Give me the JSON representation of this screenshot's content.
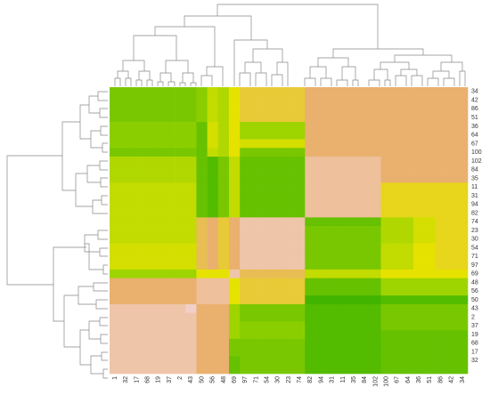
{
  "chart_data": {
    "type": "heatmap",
    "x": [
      "1",
      "32",
      "17",
      "68",
      "19",
      "37",
      "2",
      "43",
      "50",
      "56",
      "48",
      "69",
      "97",
      "71",
      "54",
      "30",
      "23",
      "74",
      "82",
      "94",
      "31",
      "11",
      "35",
      "84",
      "102",
      "100",
      "67",
      "64",
      "36",
      "51",
      "86",
      "42",
      "34"
    ],
    "y": [
      "34",
      "42",
      "86",
      "51",
      "36",
      "64",
      "67",
      "100",
      "102",
      "84",
      "35",
      "11",
      "31",
      "94",
      "82",
      "74",
      "23",
      "30",
      "54",
      "71",
      "97",
      "69",
      "48",
      "56",
      "50",
      "43",
      "2",
      "37",
      "19",
      "68",
      "17",
      "32",
      null
    ],
    "colorscale": [
      [
        0,
        "#f2cfc8"
      ],
      [
        0.3,
        "#e9b06e"
      ],
      [
        0.5,
        "#e6e200"
      ],
      [
        0.7,
        "#9ed400"
      ],
      [
        1,
        "#2eae00"
      ]
    ],
    "values": [
      [
        0.8,
        0.8,
        0.8,
        0.8,
        0.8,
        0.8,
        0.8,
        0.8,
        0.75,
        0.6,
        0.65,
        0.5,
        0.4,
        0.4,
        0.4,
        0.4,
        0.4,
        0.4,
        0.3,
        0.3,
        0.3,
        0.3,
        0.3,
        0.3,
        0.3,
        0.3,
        0.3,
        0.3,
        0.3,
        0.3,
        0.3,
        0.3,
        0.3
      ],
      [
        0.8,
        0.8,
        0.8,
        0.8,
        0.8,
        0.8,
        0.8,
        0.8,
        0.75,
        0.6,
        0.65,
        0.5,
        0.4,
        0.4,
        0.4,
        0.4,
        0.4,
        0.4,
        0.3,
        0.3,
        0.3,
        0.3,
        0.3,
        0.3,
        0.3,
        0.3,
        0.3,
        0.3,
        0.3,
        0.3,
        0.3,
        0.3,
        0.3
      ],
      [
        0.8,
        0.8,
        0.8,
        0.8,
        0.8,
        0.8,
        0.8,
        0.8,
        0.75,
        0.6,
        0.65,
        0.5,
        0.4,
        0.4,
        0.4,
        0.4,
        0.4,
        0.4,
        0.3,
        0.3,
        0.3,
        0.3,
        0.3,
        0.3,
        0.3,
        0.3,
        0.3,
        0.3,
        0.3,
        0.3,
        0.3,
        0.3,
        0.3
      ],
      [
        0.8,
        0.8,
        0.8,
        0.8,
        0.8,
        0.8,
        0.8,
        0.8,
        0.75,
        0.6,
        0.65,
        0.5,
        0.4,
        0.4,
        0.4,
        0.4,
        0.4,
        0.4,
        0.3,
        0.3,
        0.3,
        0.3,
        0.3,
        0.3,
        0.3,
        0.3,
        0.3,
        0.3,
        0.3,
        0.3,
        0.3,
        0.3,
        0.3
      ],
      [
        0.75,
        0.75,
        0.75,
        0.75,
        0.75,
        0.75,
        0.75,
        0.75,
        0.85,
        0.55,
        0.65,
        0.5,
        0.7,
        0.7,
        0.7,
        0.7,
        0.7,
        0.7,
        0.3,
        0.3,
        0.3,
        0.3,
        0.3,
        0.3,
        0.3,
        0.3,
        0.3,
        0.3,
        0.3,
        0.3,
        0.3,
        0.3,
        0.3
      ],
      [
        0.75,
        0.75,
        0.75,
        0.75,
        0.75,
        0.75,
        0.75,
        0.75,
        0.85,
        0.55,
        0.65,
        0.5,
        0.7,
        0.7,
        0.7,
        0.7,
        0.7,
        0.7,
        0.3,
        0.3,
        0.3,
        0.3,
        0.3,
        0.3,
        0.3,
        0.3,
        0.3,
        0.3,
        0.3,
        0.3,
        0.3,
        0.3,
        0.3
      ],
      [
        0.75,
        0.75,
        0.75,
        0.75,
        0.75,
        0.75,
        0.75,
        0.75,
        0.85,
        0.55,
        0.65,
        0.5,
        0.55,
        0.55,
        0.55,
        0.55,
        0.55,
        0.55,
        0.3,
        0.3,
        0.3,
        0.3,
        0.3,
        0.3,
        0.3,
        0.3,
        0.3,
        0.3,
        0.3,
        0.3,
        0.3,
        0.3,
        0.3
      ],
      [
        0.8,
        0.8,
        0.8,
        0.8,
        0.8,
        0.8,
        0.8,
        0.8,
        0.85,
        0.6,
        0.65,
        0.5,
        0.8,
        0.8,
        0.8,
        0.8,
        0.8,
        0.8,
        0.3,
        0.3,
        0.3,
        0.3,
        0.3,
        0.3,
        0.3,
        0.3,
        0.3,
        0.3,
        0.3,
        0.3,
        0.3,
        0.3,
        0.3
      ],
      [
        0.65,
        0.65,
        0.65,
        0.65,
        0.65,
        0.65,
        0.65,
        0.65,
        0.85,
        0.9,
        0.8,
        0.6,
        0.85,
        0.85,
        0.85,
        0.85,
        0.85,
        0.85,
        0.15,
        0.15,
        0.15,
        0.15,
        0.15,
        0.15,
        0.15,
        0.3,
        0.3,
        0.3,
        0.3,
        0.3,
        0.3,
        0.3,
        0.3
      ],
      [
        0.65,
        0.65,
        0.65,
        0.65,
        0.65,
        0.65,
        0.65,
        0.65,
        0.85,
        0.9,
        0.8,
        0.6,
        0.85,
        0.85,
        0.85,
        0.85,
        0.85,
        0.85,
        0.15,
        0.15,
        0.15,
        0.15,
        0.15,
        0.15,
        0.15,
        0.3,
        0.3,
        0.3,
        0.3,
        0.3,
        0.3,
        0.3,
        0.3
      ],
      [
        0.65,
        0.65,
        0.65,
        0.65,
        0.65,
        0.65,
        0.65,
        0.65,
        0.85,
        0.9,
        0.8,
        0.6,
        0.85,
        0.85,
        0.85,
        0.85,
        0.85,
        0.85,
        0.15,
        0.15,
        0.15,
        0.15,
        0.15,
        0.15,
        0.15,
        0.3,
        0.3,
        0.3,
        0.3,
        0.3,
        0.3,
        0.3,
        0.3
      ],
      [
        0.6,
        0.6,
        0.6,
        0.6,
        0.6,
        0.6,
        0.6,
        0.6,
        0.85,
        0.9,
        0.8,
        0.6,
        0.85,
        0.85,
        0.85,
        0.85,
        0.85,
        0.85,
        0.15,
        0.15,
        0.15,
        0.15,
        0.15,
        0.15,
        0.15,
        0.45,
        0.45,
        0.45,
        0.45,
        0.45,
        0.45,
        0.45,
        0.45
      ],
      [
        0.6,
        0.6,
        0.6,
        0.6,
        0.6,
        0.6,
        0.6,
        0.6,
        0.85,
        0.9,
        0.8,
        0.6,
        0.85,
        0.85,
        0.85,
        0.85,
        0.85,
        0.85,
        0.15,
        0.15,
        0.15,
        0.15,
        0.15,
        0.15,
        0.15,
        0.45,
        0.45,
        0.45,
        0.45,
        0.45,
        0.45,
        0.45,
        0.45
      ],
      [
        0.6,
        0.6,
        0.6,
        0.6,
        0.6,
        0.6,
        0.6,
        0.6,
        0.85,
        0.9,
        0.8,
        0.6,
        0.85,
        0.85,
        0.85,
        0.85,
        0.85,
        0.85,
        0.15,
        0.15,
        0.15,
        0.15,
        0.15,
        0.15,
        0.15,
        0.45,
        0.45,
        0.45,
        0.45,
        0.45,
        0.45,
        0.45,
        0.45
      ],
      [
        0.6,
        0.6,
        0.6,
        0.6,
        0.6,
        0.6,
        0.6,
        0.6,
        0.85,
        0.9,
        0.8,
        0.6,
        0.85,
        0.85,
        0.85,
        0.85,
        0.85,
        0.85,
        0.15,
        0.15,
        0.15,
        0.15,
        0.15,
        0.15,
        0.15,
        0.45,
        0.45,
        0.45,
        0.45,
        0.45,
        0.45,
        0.45,
        0.45
      ],
      [
        0.6,
        0.6,
        0.6,
        0.6,
        0.6,
        0.6,
        0.6,
        0.6,
        0.35,
        0.3,
        0.4,
        0.3,
        0.1,
        0.1,
        0.1,
        0.1,
        0.1,
        0.1,
        0.85,
        0.85,
        0.85,
        0.85,
        0.85,
        0.85,
        0.85,
        0.65,
        0.65,
        0.65,
        0.55,
        0.55,
        0.45,
        0.45,
        0.45
      ],
      [
        0.6,
        0.6,
        0.6,
        0.6,
        0.6,
        0.6,
        0.6,
        0.6,
        0.35,
        0.3,
        0.4,
        0.3,
        0.1,
        0.1,
        0.1,
        0.1,
        0.1,
        0.1,
        0.8,
        0.8,
        0.8,
        0.8,
        0.8,
        0.8,
        0.8,
        0.65,
        0.65,
        0.65,
        0.55,
        0.55,
        0.45,
        0.45,
        0.45
      ],
      [
        0.6,
        0.6,
        0.6,
        0.6,
        0.6,
        0.6,
        0.6,
        0.6,
        0.35,
        0.3,
        0.4,
        0.3,
        0.1,
        0.1,
        0.1,
        0.1,
        0.1,
        0.1,
        0.8,
        0.8,
        0.8,
        0.8,
        0.8,
        0.8,
        0.8,
        0.65,
        0.65,
        0.65,
        0.55,
        0.55,
        0.45,
        0.45,
        0.45
      ],
      [
        0.55,
        0.55,
        0.55,
        0.55,
        0.55,
        0.55,
        0.55,
        0.55,
        0.35,
        0.3,
        0.4,
        0.3,
        0.1,
        0.1,
        0.1,
        0.1,
        0.1,
        0.1,
        0.8,
        0.8,
        0.8,
        0.8,
        0.8,
        0.8,
        0.8,
        0.6,
        0.6,
        0.6,
        0.5,
        0.5,
        0.45,
        0.45,
        0.45
      ],
      [
        0.55,
        0.55,
        0.55,
        0.55,
        0.55,
        0.55,
        0.55,
        0.55,
        0.35,
        0.3,
        0.4,
        0.3,
        0.1,
        0.1,
        0.1,
        0.1,
        0.1,
        0.1,
        0.8,
        0.8,
        0.8,
        0.8,
        0.8,
        0.8,
        0.8,
        0.6,
        0.6,
        0.6,
        0.5,
        0.5,
        0.45,
        0.45,
        0.45
      ],
      [
        0.55,
        0.55,
        0.55,
        0.55,
        0.55,
        0.55,
        0.55,
        0.55,
        0.35,
        0.3,
        0.4,
        0.3,
        0.1,
        0.1,
        0.1,
        0.1,
        0.1,
        0.1,
        0.8,
        0.8,
        0.8,
        0.8,
        0.8,
        0.8,
        0.8,
        0.6,
        0.6,
        0.6,
        0.5,
        0.5,
        0.45,
        0.45,
        0.45
      ],
      [
        0.7,
        0.7,
        0.7,
        0.7,
        0.7,
        0.7,
        0.7,
        0.7,
        0.5,
        0.5,
        0.5,
        0.1,
        0.35,
        0.35,
        0.35,
        0.35,
        0.35,
        0.35,
        0.6,
        0.6,
        0.6,
        0.6,
        0.6,
        0.6,
        0.6,
        0.5,
        0.5,
        0.5,
        0.5,
        0.5,
        0.5,
        0.5,
        0.5
      ],
      [
        0.3,
        0.3,
        0.3,
        0.3,
        0.3,
        0.3,
        0.3,
        0.3,
        0.15,
        0.15,
        0.15,
        0.5,
        0.4,
        0.4,
        0.4,
        0.4,
        0.4,
        0.4,
        0.85,
        0.85,
        0.85,
        0.85,
        0.85,
        0.85,
        0.85,
        0.7,
        0.7,
        0.7,
        0.7,
        0.7,
        0.7,
        0.7,
        0.7
      ],
      [
        0.3,
        0.3,
        0.3,
        0.3,
        0.3,
        0.3,
        0.3,
        0.3,
        0.15,
        0.15,
        0.15,
        0.5,
        0.4,
        0.4,
        0.4,
        0.4,
        0.4,
        0.4,
        0.85,
        0.85,
        0.85,
        0.85,
        0.85,
        0.85,
        0.85,
        0.7,
        0.7,
        0.7,
        0.7,
        0.7,
        0.7,
        0.7,
        0.7
      ],
      [
        0.3,
        0.3,
        0.3,
        0.3,
        0.3,
        0.3,
        0.3,
        0.3,
        0.15,
        0.15,
        0.15,
        0.5,
        0.4,
        0.4,
        0.4,
        0.4,
        0.4,
        0.4,
        0.95,
        0.95,
        0.95,
        0.95,
        0.95,
        0.95,
        0.95,
        0.9,
        0.9,
        0.9,
        0.9,
        0.9,
        0.9,
        0.9,
        0.9
      ],
      [
        0.1,
        0.1,
        0.1,
        0.1,
        0.1,
        0.1,
        0.1,
        0.0,
        0.3,
        0.3,
        0.3,
        0.7,
        0.8,
        0.8,
        0.8,
        0.8,
        0.8,
        0.8,
        0.9,
        0.9,
        0.9,
        0.9,
        0.9,
        0.9,
        0.9,
        0.8,
        0.8,
        0.8,
        0.8,
        0.8,
        0.8,
        0.8,
        0.8
      ],
      [
        0.1,
        0.1,
        0.1,
        0.1,
        0.1,
        0.1,
        0.1,
        0.1,
        0.3,
        0.3,
        0.3,
        0.7,
        0.8,
        0.8,
        0.8,
        0.8,
        0.8,
        0.8,
        0.9,
        0.9,
        0.9,
        0.9,
        0.9,
        0.9,
        0.9,
        0.8,
        0.8,
        0.8,
        0.8,
        0.8,
        0.8,
        0.8,
        0.8
      ],
      [
        0.1,
        0.1,
        0.1,
        0.1,
        0.1,
        0.1,
        0.1,
        0.1,
        0.3,
        0.3,
        0.3,
        0.7,
        0.75,
        0.75,
        0.75,
        0.75,
        0.75,
        0.75,
        0.9,
        0.9,
        0.9,
        0.9,
        0.9,
        0.9,
        0.9,
        0.8,
        0.8,
        0.8,
        0.8,
        0.8,
        0.8,
        0.8,
        0.8
      ],
      [
        0.1,
        0.1,
        0.1,
        0.1,
        0.1,
        0.1,
        0.1,
        0.1,
        0.3,
        0.3,
        0.3,
        0.7,
        0.75,
        0.75,
        0.75,
        0.75,
        0.75,
        0.75,
        0.9,
        0.9,
        0.9,
        0.9,
        0.9,
        0.9,
        0.9,
        0.85,
        0.85,
        0.85,
        0.85,
        0.85,
        0.85,
        0.85,
        0.85
      ],
      [
        0.1,
        0.1,
        0.1,
        0.1,
        0.1,
        0.1,
        0.1,
        0.1,
        0.3,
        0.3,
        0.3,
        0.8,
        0.8,
        0.8,
        0.8,
        0.8,
        0.8,
        0.8,
        0.9,
        0.9,
        0.9,
        0.9,
        0.9,
        0.9,
        0.9,
        0.85,
        0.85,
        0.85,
        0.85,
        0.85,
        0.85,
        0.85,
        0.85
      ],
      [
        0.1,
        0.1,
        0.1,
        0.1,
        0.1,
        0.1,
        0.1,
        0.1,
        0.3,
        0.3,
        0.3,
        0.8,
        0.8,
        0.8,
        0.8,
        0.8,
        0.8,
        0.8,
        0.9,
        0.9,
        0.9,
        0.9,
        0.9,
        0.9,
        0.9,
        0.85,
        0.85,
        0.85,
        0.85,
        0.85,
        0.85,
        0.85,
        0.85
      ],
      [
        0.1,
        0.1,
        0.1,
        0.1,
        0.1,
        0.1,
        0.1,
        0.1,
        0.3,
        0.3,
        0.3,
        0.85,
        0.8,
        0.8,
        0.8,
        0.8,
        0.8,
        0.8,
        0.9,
        0.9,
        0.9,
        0.9,
        0.9,
        0.9,
        0.9,
        0.85,
        0.85,
        0.85,
        0.85,
        0.85,
        0.85,
        0.85,
        0.85
      ],
      [
        0.1,
        0.1,
        0.1,
        0.1,
        0.1,
        0.1,
        0.1,
        0.1,
        0.3,
        0.3,
        0.3,
        0.85,
        0.8,
        0.8,
        0.8,
        0.8,
        0.8,
        0.8,
        0.9,
        0.9,
        0.9,
        0.9,
        0.9,
        0.9,
        0.9,
        0.85,
        0.85,
        0.85,
        0.85,
        0.85,
        0.85,
        0.85,
        0.85
      ]
    ]
  }
}
